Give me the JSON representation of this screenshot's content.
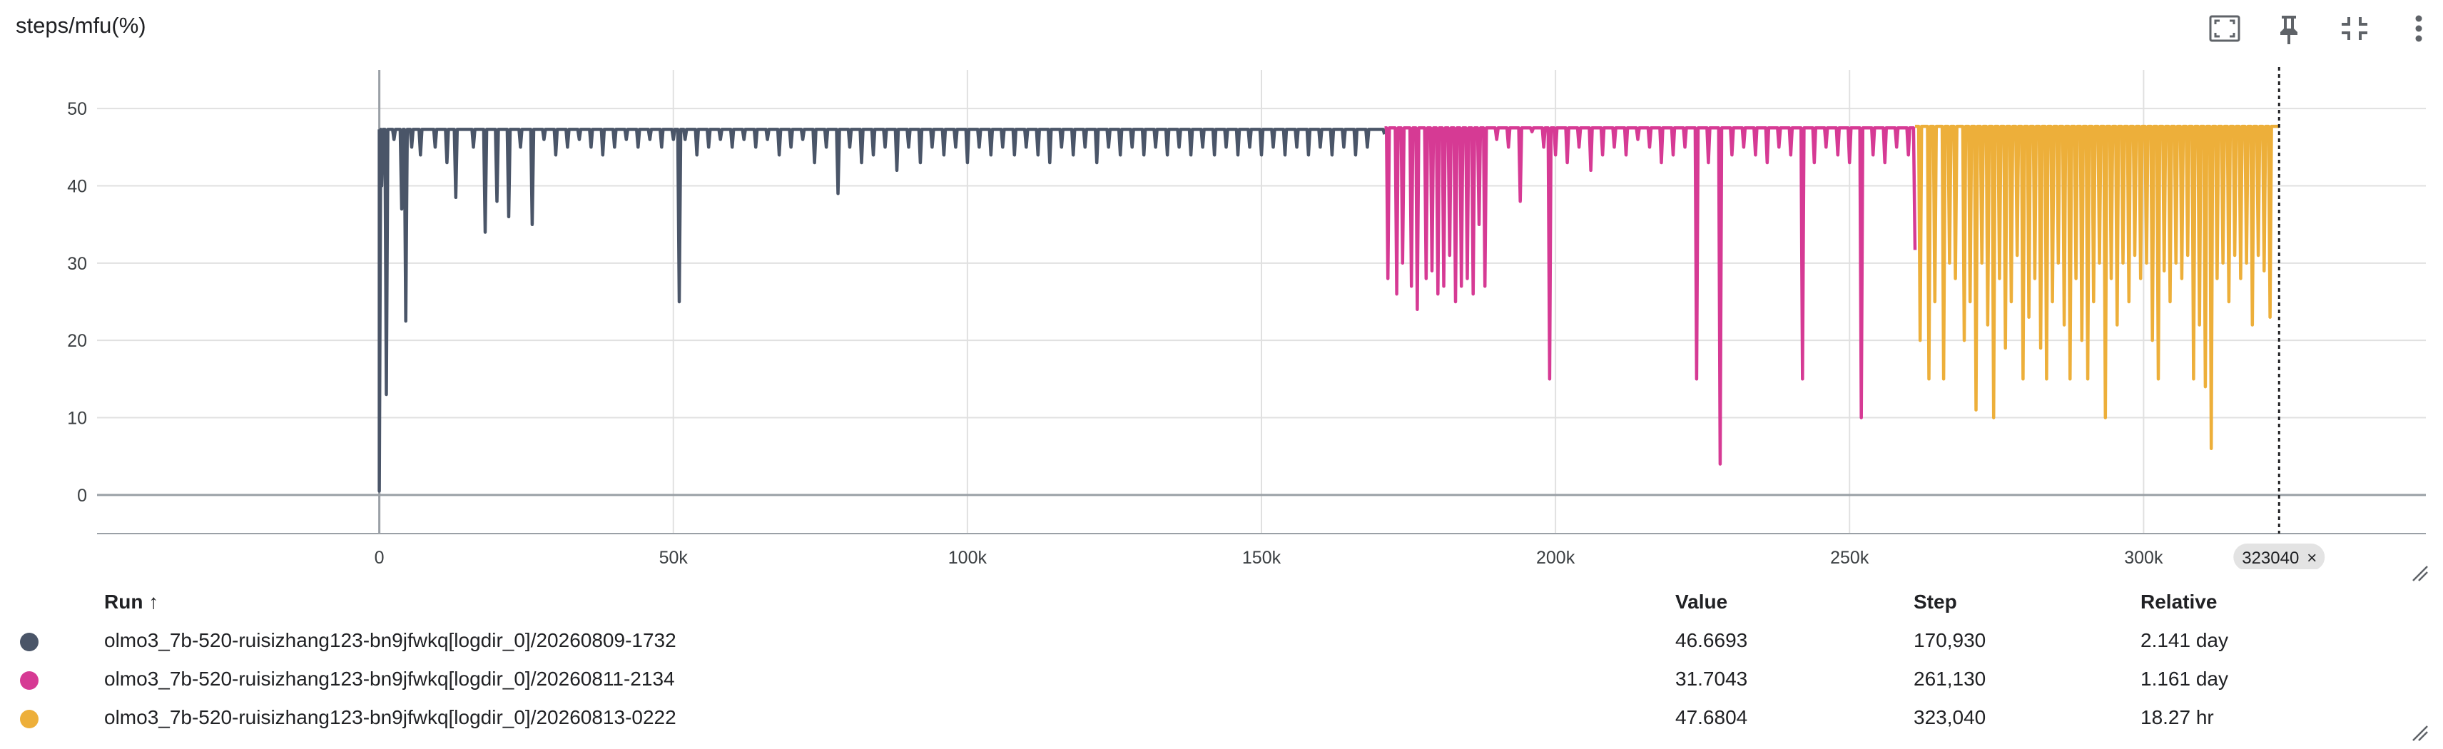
{
  "card": {
    "title": "steps/mfu(%)"
  },
  "toolbar": {
    "icons": [
      "fullscreen-icon",
      "pin-icon",
      "collapse-icon",
      "more-vert-icon"
    ]
  },
  "colors": {
    "series": [
      "#4a5568",
      "#d63a94",
      "#edaf3a"
    ],
    "grid": "#e0e0e0",
    "axis": "#9aa0a6",
    "hover_line": "#202124",
    "chip_bg": "#e3e3e3"
  },
  "chart_data": {
    "type": "line",
    "title": "steps/mfu(%)",
    "xlabel": "",
    "ylabel": "",
    "xlim": [
      -48000,
      348000
    ],
    "ylim": [
      -5,
      55
    ],
    "x_ticks": [
      0,
      50000,
      100000,
      150000,
      200000,
      250000,
      300000
    ],
    "x_tick_labels": [
      "0",
      "50k",
      "100k",
      "150k",
      "200k",
      "250k",
      "300k"
    ],
    "y_ticks": [
      0,
      10,
      20,
      30,
      40,
      50
    ],
    "y_tick_labels": [
      "0",
      "10",
      "20",
      "30",
      "40",
      "50"
    ],
    "grid": true,
    "hover_step": 323040,
    "hover_label": "323040",
    "series": [
      {
        "name": "olmo3_7b-520-ruisizhang123-bn9jfwkq[logdir_0]/20260809-1732",
        "x_range": [
          0,
          170930
        ],
        "baseline": 47.3,
        "dips": [
          [
            0,
            0.5
          ],
          [
            400,
            40
          ],
          [
            1200,
            13
          ],
          [
            2500,
            46
          ],
          [
            3800,
            37
          ],
          [
            4500,
            22.5
          ],
          [
            5500,
            45
          ],
          [
            7000,
            44
          ],
          [
            9500,
            45
          ],
          [
            11500,
            43
          ],
          [
            13000,
            38.5
          ],
          [
            16000,
            45
          ],
          [
            18000,
            34
          ],
          [
            20000,
            38
          ],
          [
            22000,
            36
          ],
          [
            24000,
            45
          ],
          [
            26000,
            35
          ],
          [
            28000,
            46
          ],
          [
            30000,
            44
          ],
          [
            32000,
            45
          ],
          [
            34000,
            46
          ],
          [
            36000,
            45
          ],
          [
            38000,
            44
          ],
          [
            40000,
            45
          ],
          [
            42000,
            46
          ],
          [
            44000,
            45
          ],
          [
            46000,
            46
          ],
          [
            48000,
            45
          ],
          [
            50000,
            46
          ],
          [
            51000,
            25
          ],
          [
            52000,
            46
          ],
          [
            54000,
            44
          ],
          [
            56000,
            45
          ],
          [
            58000,
            46
          ],
          [
            60000,
            45
          ],
          [
            62000,
            46
          ],
          [
            64000,
            45
          ],
          [
            66000,
            46
          ],
          [
            68000,
            44
          ],
          [
            70000,
            45
          ],
          [
            72000,
            46
          ],
          [
            74000,
            43
          ],
          [
            76000,
            45
          ],
          [
            78000,
            39
          ],
          [
            80000,
            45
          ],
          [
            82000,
            43
          ],
          [
            84000,
            44
          ],
          [
            86000,
            45
          ],
          [
            88000,
            42
          ],
          [
            90000,
            45
          ],
          [
            92000,
            43
          ],
          [
            94000,
            45
          ],
          [
            96000,
            44
          ],
          [
            98000,
            45
          ],
          [
            100000,
            43
          ],
          [
            102000,
            45
          ],
          [
            104000,
            44
          ],
          [
            106000,
            45
          ],
          [
            108000,
            44
          ],
          [
            110000,
            45
          ],
          [
            112000,
            44
          ],
          [
            114000,
            43
          ],
          [
            116000,
            45
          ],
          [
            118000,
            44
          ],
          [
            120000,
            45
          ],
          [
            122000,
            43
          ],
          [
            124000,
            45
          ],
          [
            126000,
            44
          ],
          [
            128000,
            45
          ],
          [
            130000,
            44
          ],
          [
            132000,
            45
          ],
          [
            134000,
            44
          ],
          [
            136000,
            45
          ],
          [
            138000,
            44
          ],
          [
            140000,
            45
          ],
          [
            142000,
            44
          ],
          [
            144000,
            45
          ],
          [
            146000,
            44
          ],
          [
            148000,
            45
          ],
          [
            150000,
            44
          ],
          [
            152000,
            45
          ],
          [
            154000,
            44
          ],
          [
            156000,
            45
          ],
          [
            158000,
            44
          ],
          [
            160000,
            45
          ],
          [
            162000,
            44
          ],
          [
            164000,
            45
          ],
          [
            166000,
            44
          ],
          [
            168000,
            45
          ],
          [
            170930,
            46.67
          ]
        ]
      },
      {
        "name": "olmo3_7b-520-ruisizhang123-bn9jfwkq[logdir_0]/20260811-2134",
        "x_range": [
          170930,
          261130
        ],
        "baseline": 47.5,
        "dips": [
          [
            171500,
            28
          ],
          [
            173000,
            26
          ],
          [
            174000,
            30
          ],
          [
            175500,
            27
          ],
          [
            176500,
            24
          ],
          [
            178000,
            28
          ],
          [
            179000,
            29
          ],
          [
            180000,
            26
          ],
          [
            181000,
            27
          ],
          [
            182000,
            31
          ],
          [
            183000,
            25
          ],
          [
            184000,
            27
          ],
          [
            185000,
            28
          ],
          [
            186000,
            26
          ],
          [
            187000,
            35
          ],
          [
            188000,
            27
          ],
          [
            190000,
            46
          ],
          [
            192000,
            45
          ],
          [
            194000,
            38
          ],
          [
            196000,
            47
          ],
          [
            198000,
            45
          ],
          [
            199000,
            15
          ],
          [
            200000,
            44
          ],
          [
            202000,
            43
          ],
          [
            204000,
            45
          ],
          [
            206000,
            42
          ],
          [
            208000,
            44
          ],
          [
            210000,
            45
          ],
          [
            212000,
            44
          ],
          [
            214000,
            46
          ],
          [
            216000,
            45
          ],
          [
            218000,
            43
          ],
          [
            220000,
            44
          ],
          [
            222000,
            45
          ],
          [
            224000,
            15
          ],
          [
            226000,
            43
          ],
          [
            228000,
            4
          ],
          [
            230000,
            44
          ],
          [
            232000,
            45
          ],
          [
            234000,
            44
          ],
          [
            236000,
            43
          ],
          [
            238000,
            45
          ],
          [
            240000,
            44
          ],
          [
            242000,
            15
          ],
          [
            244000,
            43
          ],
          [
            246000,
            45
          ],
          [
            248000,
            44
          ],
          [
            250000,
            43
          ],
          [
            252000,
            10
          ],
          [
            254000,
            44
          ],
          [
            256000,
            43
          ],
          [
            258000,
            45
          ],
          [
            260000,
            44
          ],
          [
            261130,
            31.7
          ]
        ]
      },
      {
        "name": "olmo3_7b-520-ruisizhang123-bn9jfwkq[logdir_0]/20260813-0222",
        "x_range": [
          261130,
          323040
        ],
        "baseline": 47.7,
        "dips": [
          [
            262000,
            20
          ],
          [
            263500,
            15
          ],
          [
            264500,
            25
          ],
          [
            266000,
            15
          ],
          [
            267000,
            30
          ],
          [
            268000,
            28
          ],
          [
            269500,
            20
          ],
          [
            270500,
            25
          ],
          [
            271500,
            11
          ],
          [
            272500,
            30
          ],
          [
            273500,
            22
          ],
          [
            274500,
            10
          ],
          [
            275500,
            28
          ],
          [
            276500,
            19
          ],
          [
            277500,
            25
          ],
          [
            278500,
            31
          ],
          [
            279500,
            15
          ],
          [
            280500,
            23
          ],
          [
            281500,
            28
          ],
          [
            282500,
            19
          ],
          [
            283500,
            15
          ],
          [
            284500,
            25
          ],
          [
            285500,
            30
          ],
          [
            286500,
            22
          ],
          [
            287500,
            15
          ],
          [
            288500,
            28
          ],
          [
            289500,
            20
          ],
          [
            290500,
            15
          ],
          [
            291500,
            25
          ],
          [
            292500,
            30
          ],
          [
            293500,
            10
          ],
          [
            294500,
            28
          ],
          [
            295500,
            22
          ],
          [
            296500,
            30
          ],
          [
            297500,
            25
          ],
          [
            298500,
            31
          ],
          [
            299500,
            28
          ],
          [
            300500,
            30
          ],
          [
            301500,
            20
          ],
          [
            302500,
            15
          ],
          [
            303500,
            29
          ],
          [
            304500,
            25
          ],
          [
            305500,
            30
          ],
          [
            306500,
            28
          ],
          [
            307500,
            31
          ],
          [
            308500,
            15
          ],
          [
            309500,
            22
          ],
          [
            310500,
            14
          ],
          [
            311500,
            6
          ],
          [
            312500,
            28
          ],
          [
            313500,
            30
          ],
          [
            314500,
            25
          ],
          [
            315500,
            31
          ],
          [
            316500,
            28
          ],
          [
            317500,
            30
          ],
          [
            318500,
            22
          ],
          [
            319500,
            31
          ],
          [
            320500,
            29
          ],
          [
            321500,
            23
          ],
          [
            323040,
            47.68
          ]
        ]
      }
    ]
  },
  "legend": {
    "headers": {
      "run": "Run ↑",
      "value": "Value",
      "step": "Step",
      "relative": "Relative"
    },
    "rows": [
      {
        "run": "olmo3_7b-520-ruisizhang123-bn9jfwkq[logdir_0]/20260809-1732",
        "value": "46.6693",
        "step": "170,930",
        "relative": "2.141 day",
        "color": "#4a5568"
      },
      {
        "run": "olmo3_7b-520-ruisizhang123-bn9jfwkq[logdir_0]/20260811-2134",
        "value": "31.7043",
        "step": "261,130",
        "relative": "1.161 day",
        "color": "#d63a94"
      },
      {
        "run": "olmo3_7b-520-ruisizhang123-bn9jfwkq[logdir_0]/20260813-0222",
        "value": "47.6804",
        "step": "323,040",
        "relative": "18.27 hr",
        "color": "#edaf3a"
      }
    ]
  }
}
